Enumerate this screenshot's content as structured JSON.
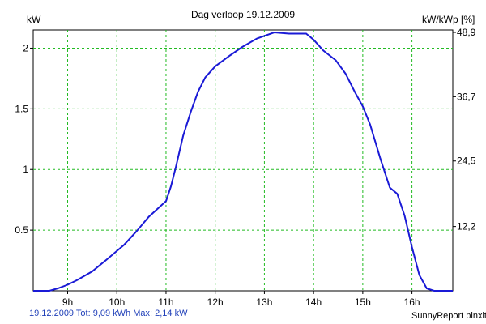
{
  "chart_data": {
    "type": "line",
    "title": "Dag  verloop 19.12.2009",
    "ylabel_left": "kW",
    "ylabel_right": "kW/kWp [%]",
    "x_unit": "hour",
    "xlim": [
      8.3,
      16.83
    ],
    "ylim": [
      0,
      2.15
    ],
    "x_ticks": [
      9,
      10,
      11,
      12,
      13,
      14,
      15,
      16
    ],
    "x_tick_labels": [
      "9h",
      "10h",
      "11h",
      "12h",
      "13h",
      "14h",
      "15h",
      "16h"
    ],
    "y_ticks_left": [
      0.5,
      1,
      1.5,
      2
    ],
    "y_tick_labels_left": [
      "0.5",
      "1",
      "1.5",
      "2"
    ],
    "y_ticks_right_kw": [
      0.53,
      1.07,
      1.6,
      2.13
    ],
    "y_tick_labels_right": [
      "12,2",
      "24,5",
      "36,7",
      "48,9"
    ],
    "grid": true,
    "line_color": "#1a1ad6",
    "grid_color": "#22bb22",
    "series": [
      {
        "x": [
          8.3,
          8.63,
          8.8,
          9.0,
          9.2,
          9.5,
          9.8,
          10.15,
          10.4,
          10.65,
          11.0,
          11.1,
          11.2,
          11.35,
          11.5,
          11.65,
          11.8,
          12.0,
          12.3,
          12.55,
          12.85,
          13.2,
          13.5,
          13.85,
          14.0,
          14.2,
          14.45,
          14.65,
          14.85,
          15.0,
          15.15,
          15.35,
          15.55,
          15.7,
          15.85,
          16.0,
          16.15,
          16.3,
          16.45,
          16.83
        ],
        "y": [
          0.0,
          0.0,
          0.02,
          0.05,
          0.09,
          0.16,
          0.26,
          0.38,
          0.49,
          0.61,
          0.74,
          0.86,
          1.02,
          1.28,
          1.47,
          1.64,
          1.76,
          1.85,
          1.94,
          2.01,
          2.08,
          2.13,
          2.12,
          2.12,
          2.07,
          1.98,
          1.9,
          1.79,
          1.63,
          1.52,
          1.37,
          1.1,
          0.85,
          0.8,
          0.62,
          0.36,
          0.13,
          0.02,
          0.0,
          0.0
        ]
      }
    ]
  },
  "footer": {
    "summary": "19.12.2009 Tot: 9,09 kWh Max: 2,14 kW",
    "credit": "SunnyReport pinxit"
  }
}
